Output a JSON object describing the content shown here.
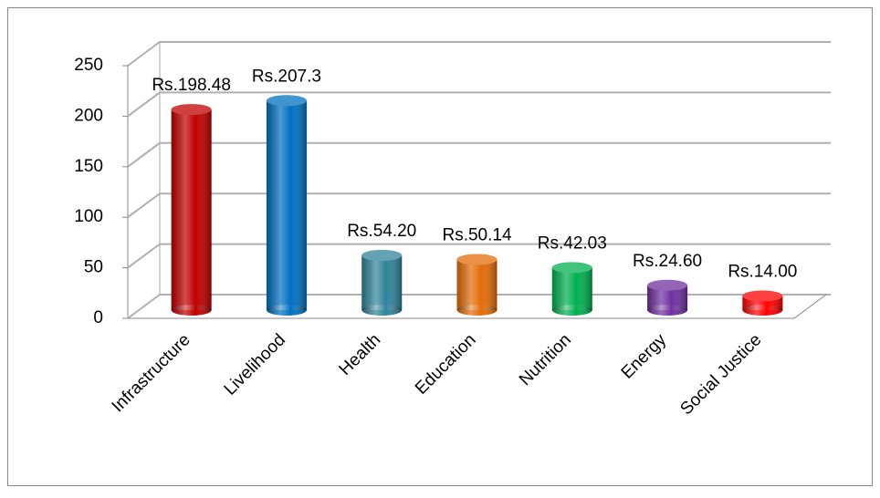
{
  "chart_data": {
    "type": "bar",
    "categories": [
      "Infrastructure",
      "Livelihood",
      "Health",
      "Education",
      "Nutrition",
      "Energy",
      "Social Justice"
    ],
    "values": [
      198.48,
      207.3,
      54.2,
      50.14,
      42.03,
      24.6,
      14.0
    ],
    "value_labels": [
      "Rs.198.48",
      "Rs.207.3",
      "Rs.54.20",
      "Rs.50.14",
      "Rs.42.03",
      "Rs.24.60",
      "Rs.14.00"
    ],
    "colors": [
      "#c00000",
      "#0070c0",
      "#31849b",
      "#e36c09",
      "#00b050",
      "#7030a0",
      "#ff0000"
    ],
    "ylim": [
      0,
      250
    ],
    "yticks": [
      0,
      50,
      100,
      150,
      200,
      250
    ],
    "grid": true
  }
}
